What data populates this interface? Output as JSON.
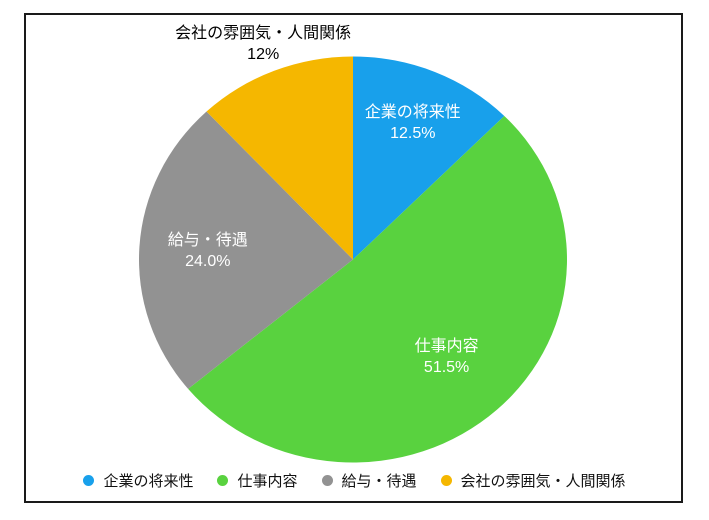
{
  "chart_data": {
    "type": "pie",
    "title": "",
    "direction": "clockwise",
    "start_angle_deg": 0,
    "legend_position": "bottom",
    "inside_label_color": "#ffffff",
    "outside_label_color": "#000000",
    "frame_border_color": "#1a1a1a",
    "slices": [
      {
        "label": "企業の将来性",
        "value": 12.5,
        "pct_text": "12.5%",
        "color": "#18A0EB",
        "label_position": "inside"
      },
      {
        "label": "仕事内容",
        "value": 51.5,
        "pct_text": "51.5%",
        "color": "#59D23F",
        "label_position": "inside"
      },
      {
        "label": "給与・待遇",
        "value": 24.0,
        "pct_text": "24.0%",
        "color": "#929292",
        "label_position": "inside"
      },
      {
        "label": "会社の雰囲気・人間関係",
        "value": 12.0,
        "pct_text": "12%",
        "color": "#F5B700",
        "label_position": "outside"
      }
    ]
  }
}
